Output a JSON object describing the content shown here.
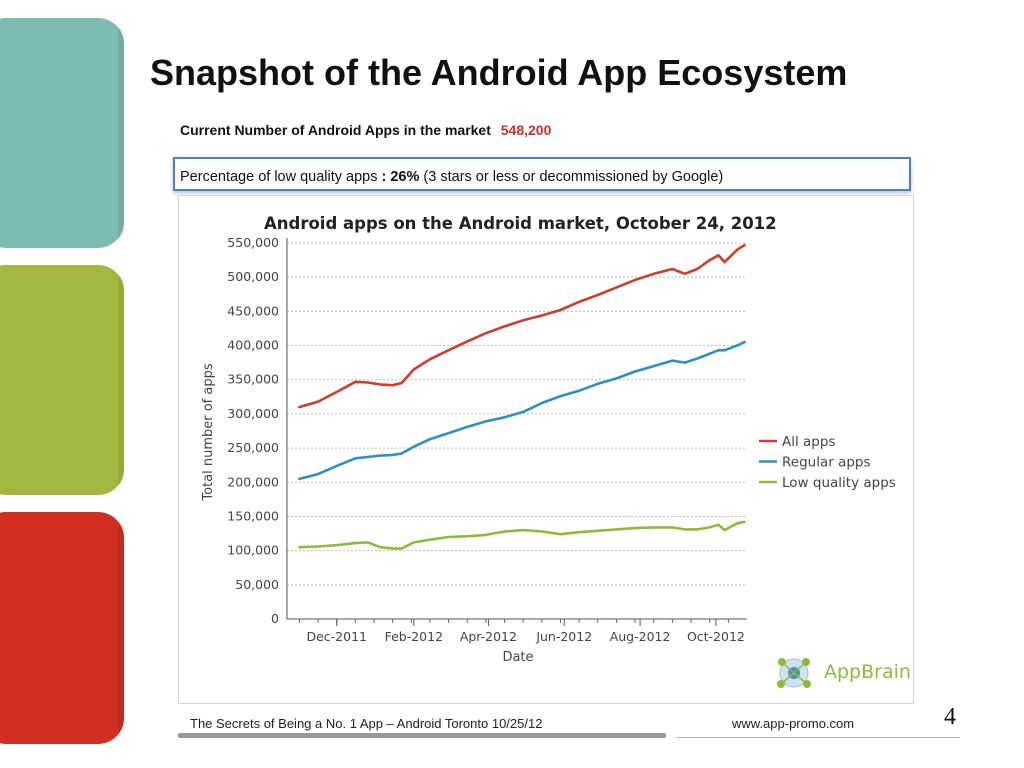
{
  "slide": {
    "title": "Snapshot of the Android App Ecosystem",
    "subtitle_label": "Current Number of Android Apps in the market",
    "subtitle_value": "548,200",
    "callout_prefix": "Percentage of low quality apps ",
    "callout_bold": ": 26%",
    "callout_suffix": " (3 stars or less or decommissioned by Google)",
    "footer_text": "The Secrets of Being a No. 1 App – Android Toronto   10/25/12",
    "footer_url": "www.app-promo.com",
    "page_number": "4",
    "logo_text": "AppBrain"
  },
  "colors": {
    "teal": "#7dbcb0",
    "green": "#a3b83e",
    "red": "#d12f22"
  },
  "chart_data": {
    "type": "line",
    "title": "Android apps on the Android market, October 24, 2012",
    "xlabel": "Date",
    "ylabel": "Total number of apps",
    "ylim": [
      0,
      550000
    ],
    "yticks": [
      "0",
      "50,000",
      "100,000",
      "150,000",
      "200,000",
      "250,000",
      "300,000",
      "350,000",
      "400,000",
      "450,000",
      "500,000",
      "550,000"
    ],
    "xticks": [
      "Dec-2011",
      "Feb-2012",
      "Apr-2012",
      "Jun-2012",
      "Aug-2012",
      "Oct-2012"
    ],
    "xtick_days": [
      30,
      92,
      152,
      213,
      274,
      335
    ],
    "x_days": [
      0,
      15,
      30,
      45,
      55,
      65,
      75,
      82,
      92,
      105,
      120,
      135,
      150,
      165,
      180,
      195,
      210,
      225,
      240,
      255,
      270,
      285,
      300,
      310,
      320,
      330,
      337,
      342,
      352,
      358
    ],
    "legend": "right",
    "grid": true,
    "series": [
      {
        "name": "All apps",
        "color": "#d13b2a",
        "values": [
          310000,
          318000,
          332000,
          347000,
          346000,
          343000,
          342000,
          345000,
          365000,
          380000,
          393000,
          406000,
          418000,
          428000,
          437000,
          444000,
          452000,
          464000,
          474000,
          485000,
          496000,
          505000,
          512000,
          505000,
          512000,
          525000,
          532000,
          522000,
          540000,
          547000
        ]
      },
      {
        "name": "Regular apps",
        "color": "#2e8fc4",
        "values": [
          205000,
          212000,
          224000,
          235000,
          237000,
          239000,
          240000,
          242000,
          252000,
          263000,
          272000,
          281000,
          289000,
          295000,
          303000,
          316000,
          326000,
          334000,
          344000,
          352000,
          362000,
          370000,
          378000,
          375000,
          381000,
          388000,
          393000,
          393000,
          400000,
          405000
        ]
      },
      {
        "name": "Low quality apps",
        "color": "#8dbb37",
        "values": [
          105000,
          106000,
          108000,
          111000,
          112000,
          105000,
          103000,
          103000,
          112000,
          116000,
          120000,
          121000,
          123000,
          128000,
          130000,
          128000,
          124000,
          127000,
          129000,
          131000,
          133000,
          134000,
          134000,
          131000,
          131000,
          134000,
          138000,
          130000,
          140000,
          142000
        ]
      }
    ]
  }
}
